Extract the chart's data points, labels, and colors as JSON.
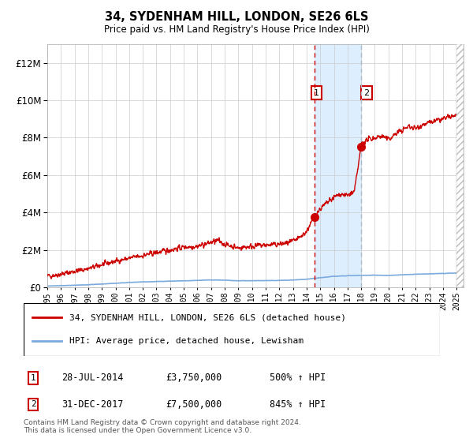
{
  "title": "34, SYDENHAM HILL, LONDON, SE26 6LS",
  "subtitle": "Price paid vs. HM Land Registry's House Price Index (HPI)",
  "legend_line1": "34, SYDENHAM HILL, LONDON, SE26 6LS (detached house)",
  "legend_line2": "HPI: Average price, detached house, Lewisham",
  "sale1_date": "28-JUL-2014",
  "sale1_price": "£3,750,000",
  "sale1_hpi": "500% ↑ HPI",
  "sale1_year": 2014.57,
  "sale1_value": 3750000,
  "sale2_date": "31-DEC-2017",
  "sale2_price": "£7,500,000",
  "sale2_hpi": "845% ↑ HPI",
  "sale2_year": 2017.99,
  "sale2_value": 7500000,
  "footnote": "Contains HM Land Registry data © Crown copyright and database right 2024.\nThis data is licensed under the Open Government Licence v3.0.",
  "red_color": "#cc0000",
  "blue_color": "#7aaadd",
  "shaded_color": "#ddeeff",
  "ylim_max": 13000000,
  "xlim_min": 1995,
  "xlim_max": 2025.5
}
